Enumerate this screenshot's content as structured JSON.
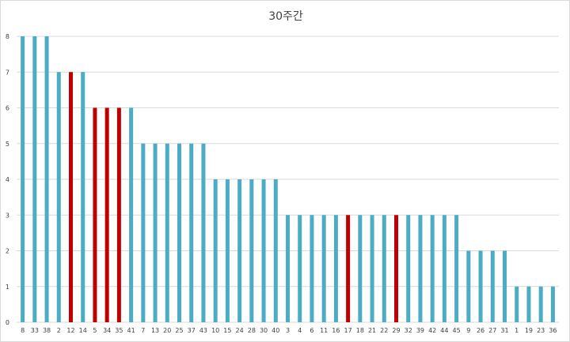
{
  "chart_data": {
    "type": "bar",
    "title": "30주간",
    "xlabel": "",
    "ylabel": "",
    "ylim": [
      0,
      8
    ],
    "yticks": [
      0,
      1,
      2,
      3,
      4,
      5,
      6,
      7,
      8
    ],
    "grid": true,
    "legend": "none",
    "colors": {
      "default": "#4bacc6",
      "highlight": "#c00000",
      "grid": "#d9d9d9"
    },
    "categories": [
      "8",
      "33",
      "38",
      "2",
      "12",
      "14",
      "5",
      "34",
      "35",
      "41",
      "7",
      "13",
      "20",
      "25",
      "37",
      "43",
      "10",
      "15",
      "24",
      "28",
      "30",
      "40",
      "3",
      "4",
      "6",
      "11",
      "16",
      "17",
      "18",
      "21",
      "22",
      "29",
      "32",
      "39",
      "42",
      "44",
      "45",
      "9",
      "26",
      "27",
      "31",
      "1",
      "19",
      "23",
      "36"
    ],
    "values": [
      8,
      8,
      8,
      7,
      7,
      7,
      6,
      6,
      6,
      6,
      5,
      5,
      5,
      5,
      5,
      5,
      4,
      4,
      4,
      4,
      4,
      4,
      3,
      3,
      3,
      3,
      3,
      3,
      3,
      3,
      3,
      3,
      3,
      3,
      3,
      3,
      3,
      2,
      2,
      2,
      2,
      1,
      1,
      1,
      1
    ],
    "highlighted_categories": [
      "12",
      "5",
      "34",
      "35",
      "17",
      "29"
    ]
  }
}
